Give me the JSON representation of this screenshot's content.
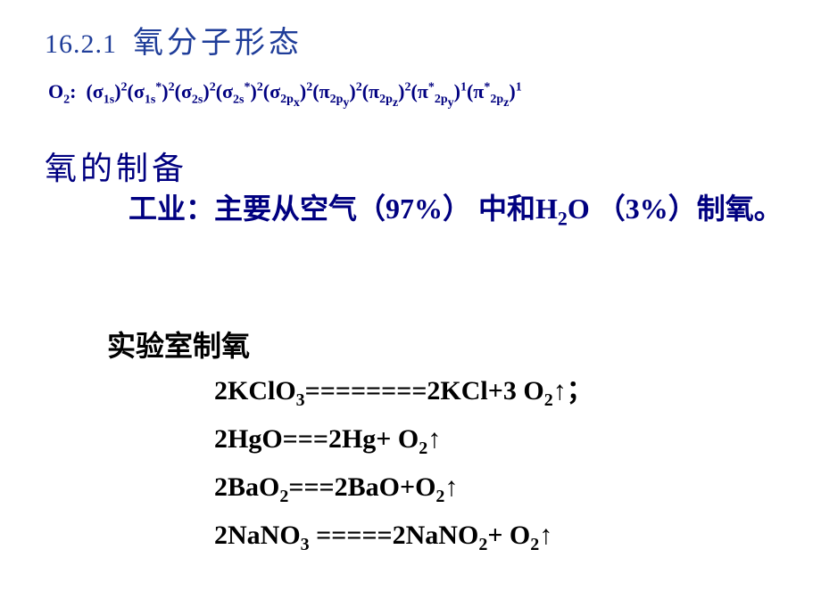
{
  "colors": {
    "title_color": "#1f3d99",
    "body_blue": "#000080",
    "black": "#000000",
    "background": "#ffffff"
  },
  "typography": {
    "title_fontsize": 34,
    "mo_fontsize": 22,
    "subtitle_fontsize": 36,
    "body_fontsize": 32,
    "eq_fontsize": 30
  },
  "section": {
    "number": "16.2.1",
    "title": "氧分子形态"
  },
  "mo": {
    "label": "O",
    "label_sub": "2",
    "colon": ":",
    "terms": [
      {
        "sym": "σ",
        "sub": "1s",
        "sup": "2"
      },
      {
        "sym": "σ",
        "sub": "1s",
        "star": "*",
        "sup": "2"
      },
      {
        "sym": "σ",
        "sub": "2s",
        "sup": "2"
      },
      {
        "sym": "σ",
        "sub": "2s",
        "star": "*",
        "sup": "2"
      },
      {
        "sym": "σ",
        "sub": "2p",
        "subsub": "x",
        "sup": "2"
      },
      {
        "sym": "π",
        "sub": "2p",
        "subsub": "y",
        "sup": "2"
      },
      {
        "sym": "π",
        "sub": "2p",
        "subsub": "z",
        "sup": "2"
      },
      {
        "sym": "π",
        "star": "*",
        "sub": "2p",
        "subsub": "y",
        "sup": "1"
      },
      {
        "sym": "π",
        "star": "*",
        "sub": "2p",
        "subsub": "z",
        "sup": "1"
      }
    ]
  },
  "prep": {
    "title": "氧的制备",
    "industrial_indent": "　　工业：主要从空气（97%） 中和H",
    "industrial_sub": "2",
    "industrial_tail": "O （3%）制氧。",
    "lab_title": "实验室制氧",
    "equations": [
      {
        "text": "2KClO₃========2KCl+3 O₂↑；"
      },
      {
        "text": "2HgO===2Hg+ O₂↑"
      },
      {
        "text": "2BaO₂===2BaO+O₂↑"
      },
      {
        "text": "2NaNO₃ =====2NaNO₂+ O₂↑"
      }
    ],
    "equations_raw": {
      "eq1_lhs": "2KClO",
      "eq1_lhs_sub": "3",
      "eq1_mid": "========2KCl+3 O",
      "eq1_rhs_sub": "2",
      "eq1_tail": "↑；",
      "eq2_lhs": "2HgO===2Hg+ O",
      "eq2_sub": "2",
      "eq2_tail": "↑",
      "eq3_lhs": "2BaO",
      "eq3_sub1": "2",
      "eq3_mid": "===2BaO+O",
      "eq3_sub2": "2",
      "eq3_tail": "↑",
      "eq4_lhs": "2NaNO",
      "eq4_sub1": "3",
      "eq4_mid": " =====2NaNO",
      "eq4_sub2": "2",
      "eq4_tail": "+ O",
      "eq4_sub3": "2",
      "eq4_tail2": "↑"
    }
  }
}
